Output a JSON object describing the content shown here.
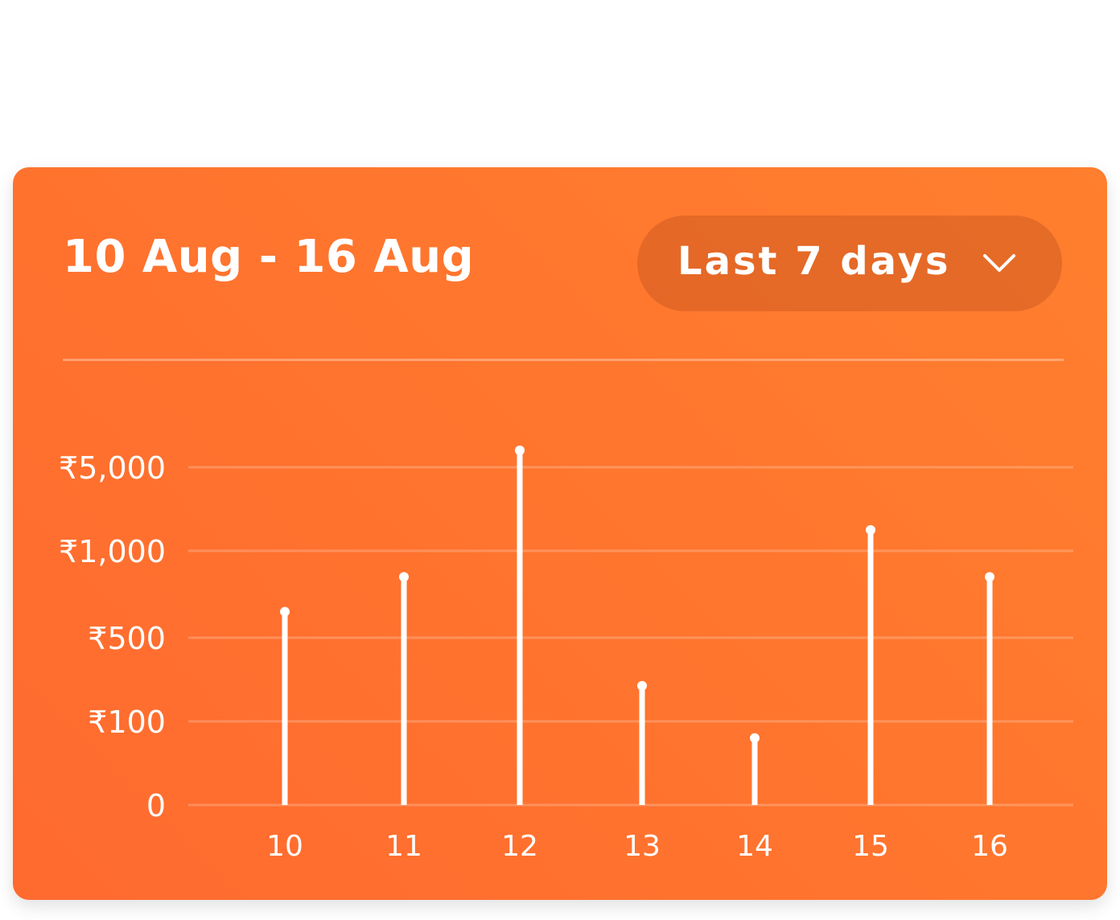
{
  "header": {
    "date_range": "10 Aug - 16 Aug",
    "period_selector": {
      "selected": "Last 7 days",
      "icon": "chevron-down-icon"
    }
  },
  "colors": {
    "card_gradient_start": "#ff7f2e",
    "card_gradient_end": "#ff6a2f",
    "mark": "#ffffff"
  },
  "chart_data": {
    "type": "bar",
    "style": "lollipop",
    "categories": [
      "10",
      "11",
      "12",
      "13",
      "14",
      "15",
      "16"
    ],
    "values": [
      650,
      850,
      6500,
      270,
      80,
      2000,
      850
    ],
    "y_ticks": [
      {
        "value": 0,
        "label": "0"
      },
      {
        "value": 100,
        "label": "₹100"
      },
      {
        "value": 500,
        "label": "₹500"
      },
      {
        "value": 1000,
        "label": "₹1,000"
      },
      {
        "value": 5000,
        "label": "₹5,000"
      }
    ],
    "y_scale": "piecewise",
    "grid": true,
    "title": "",
    "xlabel": "",
    "ylabel": ""
  }
}
